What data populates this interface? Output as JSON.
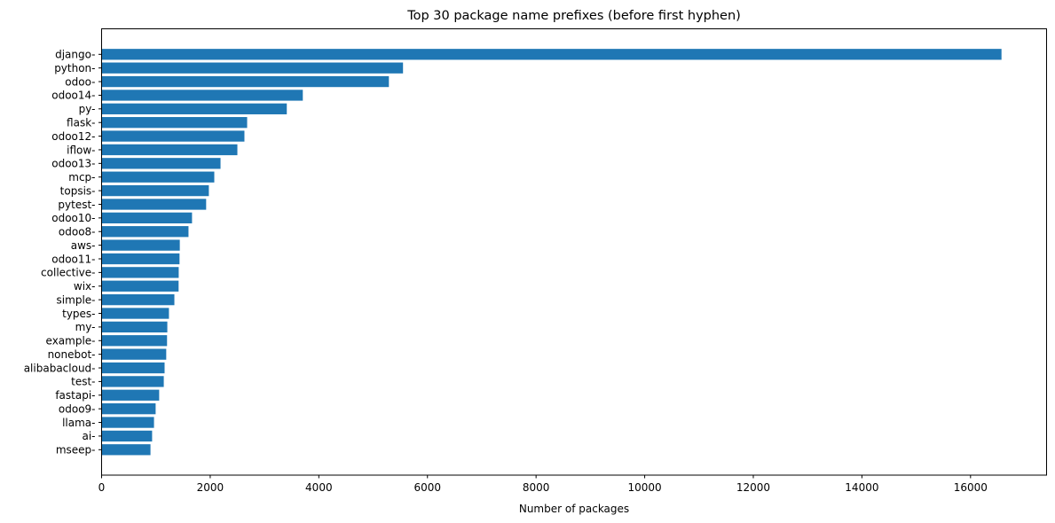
{
  "chart_data": {
    "type": "bar",
    "orientation": "horizontal",
    "title": "Top 30 package name prefixes (before first hyphen)",
    "xlabel": "Number of packages",
    "ylabel": "",
    "xlim": [
      0,
      17400
    ],
    "xticks": [
      0,
      2000,
      4000,
      6000,
      8000,
      10000,
      12000,
      14000,
      16000
    ],
    "grid": false,
    "legend": null,
    "bar_color": "#1f77b4",
    "categories": [
      "django-",
      "python-",
      "odoo-",
      "odoo14-",
      "py-",
      "flask-",
      "odoo12-",
      "iflow-",
      "odoo13-",
      "mcp-",
      "topsis-",
      "pytest-",
      "odoo10-",
      "odoo8-",
      "aws-",
      "odoo11-",
      "collective-",
      "wix-",
      "simple-",
      "types-",
      "my-",
      "example-",
      "nonebot-",
      "alibabacloud-",
      "test-",
      "fastapi-",
      "odoo9-",
      "llama-",
      "ai-",
      "mseep-"
    ],
    "values": [
      16570,
      5550,
      5290,
      3705,
      3410,
      2680,
      2630,
      2500,
      2190,
      2075,
      1975,
      1925,
      1665,
      1600,
      1440,
      1435,
      1420,
      1418,
      1340,
      1240,
      1210,
      1205,
      1190,
      1160,
      1145,
      1060,
      995,
      965,
      930,
      900
    ]
  }
}
